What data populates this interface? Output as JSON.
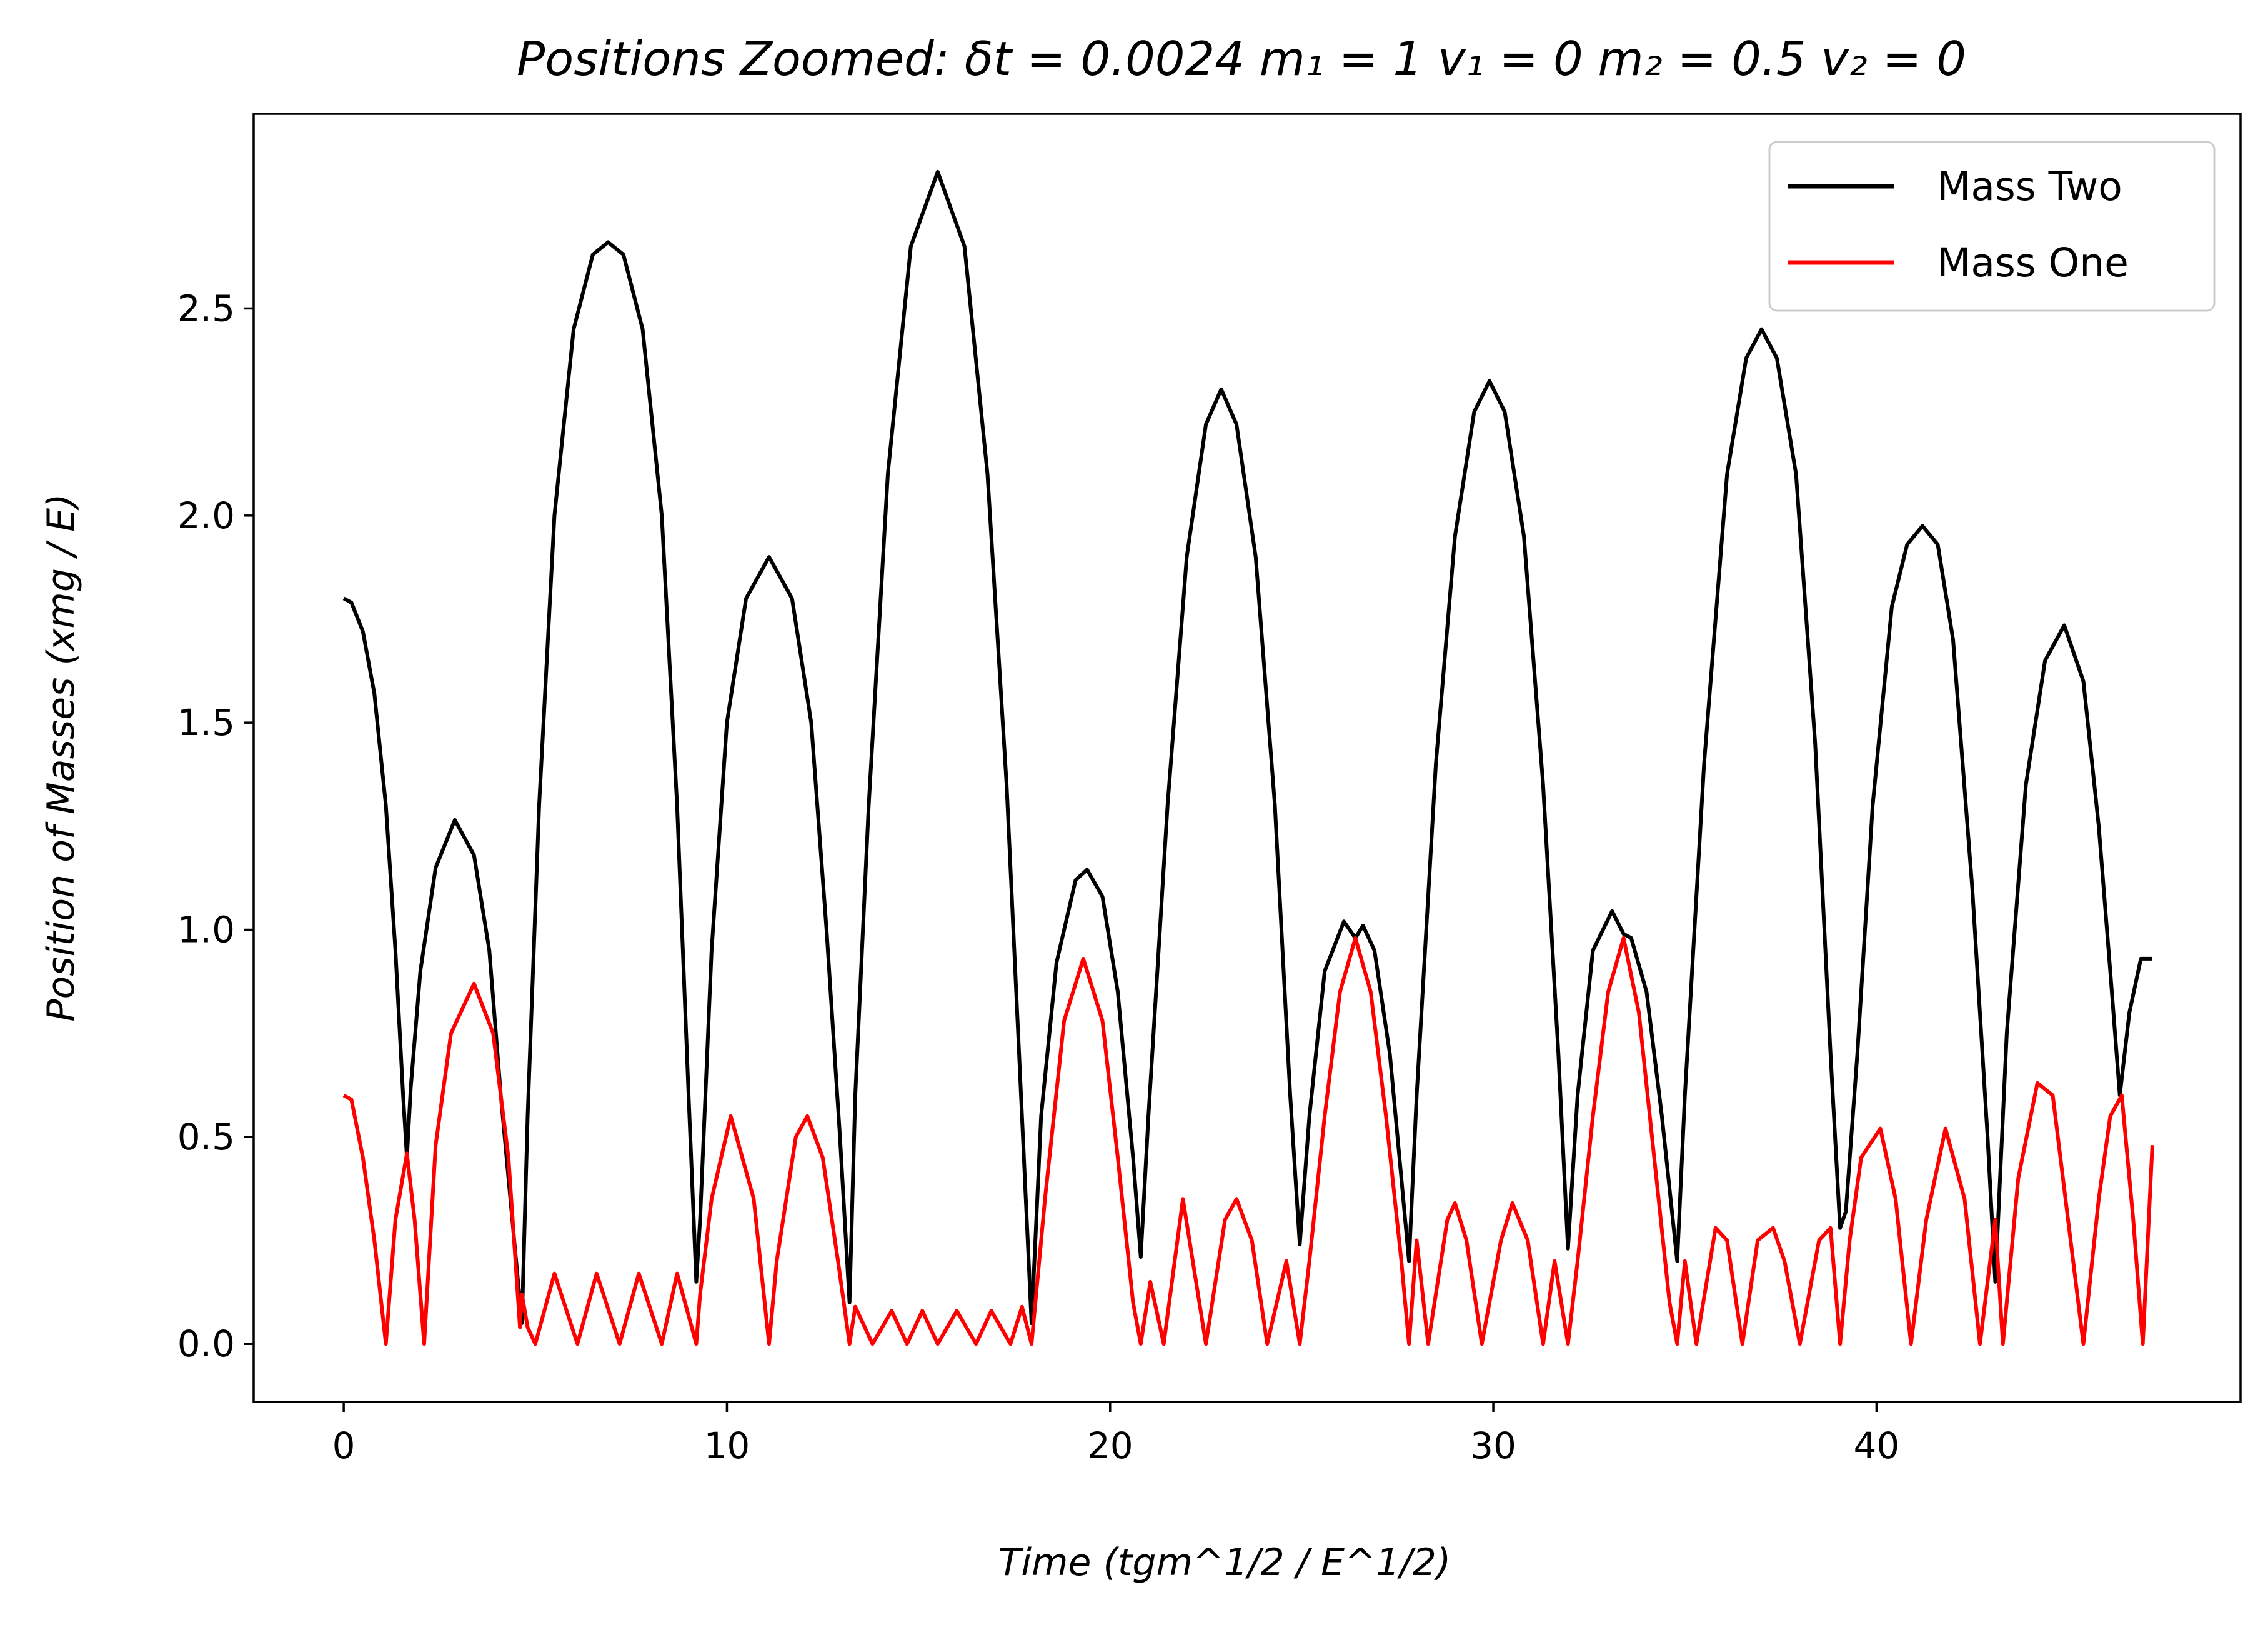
{
  "chart_data": {
    "type": "line",
    "title": "Positions Zoomed: δt = 0.0024 m₁ = 1 v₁ = 0 m₂ = 0.5 v₂ = 0",
    "xlabel": "Time (tgm^1/2 / E^1/2)",
    "ylabel": "Position of Masses (xmg / E)",
    "xlim": [
      -2.35,
      49.5
    ],
    "ylim": [
      -0.14,
      2.97
    ],
    "xticks": [
      0,
      10,
      20,
      30,
      40
    ],
    "yticks": [
      0.0,
      0.5,
      1.0,
      1.5,
      2.0,
      2.5
    ],
    "xtick_labels": [
      "0",
      "10",
      "20",
      "30",
      "40"
    ],
    "ytick_labels": [
      "0.0",
      "0.5",
      "1.0",
      "1.5",
      "2.0",
      "2.5"
    ],
    "grid": false,
    "legend_position": "top-right",
    "series": [
      {
        "name": "Mass Two",
        "color": "#000000",
        "points": [
          [
            0,
            1.8
          ],
          [
            0.2,
            1.79
          ],
          [
            0.5,
            1.72
          ],
          [
            0.8,
            1.57
          ],
          [
            1.1,
            1.3
          ],
          [
            1.35,
            0.95
          ],
          [
            1.55,
            0.6
          ],
          [
            1.65,
            0.45
          ],
          [
            1.75,
            0.62
          ],
          [
            2.0,
            0.9
          ],
          [
            2.4,
            1.15
          ],
          [
            2.9,
            1.265
          ],
          [
            3.4,
            1.18
          ],
          [
            3.8,
            0.95
          ],
          [
            4.1,
            0.6
          ],
          [
            4.5,
            0.2
          ],
          [
            4.65,
            0.05
          ],
          [
            4.8,
            0.55
          ],
          [
            5.1,
            1.3
          ],
          [
            5.5,
            2.0
          ],
          [
            6.0,
            2.45
          ],
          [
            6.5,
            2.63
          ],
          [
            6.9,
            2.66
          ],
          [
            7.3,
            2.63
          ],
          [
            7.8,
            2.45
          ],
          [
            8.3,
            2.0
          ],
          [
            8.7,
            1.3
          ],
          [
            9.0,
            0.6
          ],
          [
            9.2,
            0.15
          ],
          [
            9.3,
            0.3
          ],
          [
            9.6,
            0.95
          ],
          [
            10.0,
            1.5
          ],
          [
            10.5,
            1.8
          ],
          [
            11.1,
            1.9
          ],
          [
            11.7,
            1.8
          ],
          [
            12.2,
            1.5
          ],
          [
            12.6,
            1.0
          ],
          [
            12.95,
            0.5
          ],
          [
            13.2,
            0.1
          ],
          [
            13.35,
            0.6
          ],
          [
            13.7,
            1.3
          ],
          [
            14.2,
            2.1
          ],
          [
            14.8,
            2.65
          ],
          [
            15.5,
            2.83
          ],
          [
            16.2,
            2.65
          ],
          [
            16.8,
            2.1
          ],
          [
            17.3,
            1.35
          ],
          [
            17.7,
            0.55
          ],
          [
            17.95,
            0.05
          ],
          [
            18.2,
            0.55
          ],
          [
            18.6,
            0.92
          ],
          [
            19.1,
            1.12
          ],
          [
            19.4,
            1.145
          ],
          [
            19.8,
            1.08
          ],
          [
            20.2,
            0.85
          ],
          [
            20.6,
            0.45
          ],
          [
            20.8,
            0.21
          ],
          [
            21.0,
            0.55
          ],
          [
            21.5,
            1.3
          ],
          [
            22.0,
            1.9
          ],
          [
            22.5,
            2.22
          ],
          [
            22.9,
            2.305
          ],
          [
            23.3,
            2.22
          ],
          [
            23.8,
            1.9
          ],
          [
            24.3,
            1.3
          ],
          [
            24.7,
            0.6
          ],
          [
            24.95,
            0.24
          ],
          [
            25.2,
            0.55
          ],
          [
            25.6,
            0.9
          ],
          [
            26.1,
            1.02
          ],
          [
            26.4,
            0.98
          ],
          [
            26.6,
            1.01
          ],
          [
            26.9,
            0.95
          ],
          [
            27.3,
            0.7
          ],
          [
            27.6,
            0.4
          ],
          [
            27.8,
            0.2
          ],
          [
            28.0,
            0.6
          ],
          [
            28.5,
            1.4
          ],
          [
            29.0,
            1.95
          ],
          [
            29.5,
            2.25
          ],
          [
            29.9,
            2.325
          ],
          [
            30.3,
            2.25
          ],
          [
            30.8,
            1.95
          ],
          [
            31.3,
            1.35
          ],
          [
            31.7,
            0.7
          ],
          [
            31.95,
            0.23
          ],
          [
            32.2,
            0.6
          ],
          [
            32.6,
            0.95
          ],
          [
            33.1,
            1.045
          ],
          [
            33.4,
            0.99
          ],
          [
            33.6,
            0.98
          ],
          [
            34.0,
            0.85
          ],
          [
            34.4,
            0.55
          ],
          [
            34.8,
            0.2
          ],
          [
            35.0,
            0.6
          ],
          [
            35.5,
            1.4
          ],
          [
            36.1,
            2.1
          ],
          [
            36.6,
            2.38
          ],
          [
            37.0,
            2.45
          ],
          [
            37.4,
            2.38
          ],
          [
            37.9,
            2.1
          ],
          [
            38.4,
            1.45
          ],
          [
            38.8,
            0.7
          ],
          [
            39.05,
            0.28
          ],
          [
            39.2,
            0.32
          ],
          [
            39.5,
            0.7
          ],
          [
            39.9,
            1.3
          ],
          [
            40.4,
            1.78
          ],
          [
            40.8,
            1.93
          ],
          [
            41.2,
            1.975
          ],
          [
            41.6,
            1.93
          ],
          [
            42.0,
            1.7
          ],
          [
            42.5,
            1.1
          ],
          [
            42.9,
            0.5
          ],
          [
            43.1,
            0.15
          ],
          [
            43.4,
            0.75
          ],
          [
            43.9,
            1.35
          ],
          [
            44.4,
            1.65
          ],
          [
            44.9,
            1.735
          ],
          [
            45.4,
            1.6
          ],
          [
            45.8,
            1.25
          ],
          [
            46.1,
            0.9
          ],
          [
            46.35,
            0.6
          ],
          [
            46.6,
            0.8
          ],
          [
            46.9,
            0.93
          ],
          [
            47.2,
            0.93
          ]
        ]
      },
      {
        "name": "Mass One",
        "color": "#ff0000",
        "points": [
          [
            0,
            0.6
          ],
          [
            0.2,
            0.59
          ],
          [
            0.5,
            0.45
          ],
          [
            0.8,
            0.25
          ],
          [
            1.1,
            0.0
          ],
          [
            1.35,
            0.3
          ],
          [
            1.65,
            0.46
          ],
          [
            1.85,
            0.3
          ],
          [
            2.1,
            0.0
          ],
          [
            2.4,
            0.48
          ],
          [
            2.8,
            0.75
          ],
          [
            3.4,
            0.87
          ],
          [
            3.9,
            0.75
          ],
          [
            4.3,
            0.45
          ],
          [
            4.6,
            0.04
          ],
          [
            4.65,
            0.12
          ],
          [
            4.8,
            0.04
          ],
          [
            5.0,
            0.0
          ],
          [
            5.5,
            0.17
          ],
          [
            6.1,
            0.0
          ],
          [
            6.6,
            0.17
          ],
          [
            7.2,
            0.0
          ],
          [
            7.7,
            0.17
          ],
          [
            8.3,
            0.0
          ],
          [
            8.7,
            0.17
          ],
          [
            9.2,
            0.0
          ],
          [
            9.3,
            0.12
          ],
          [
            9.6,
            0.35
          ],
          [
            10.1,
            0.55
          ],
          [
            10.7,
            0.35
          ],
          [
            11.1,
            0.0
          ],
          [
            11.3,
            0.2
          ],
          [
            11.8,
            0.5
          ],
          [
            12.1,
            0.55
          ],
          [
            12.5,
            0.45
          ],
          [
            12.9,
            0.2
          ],
          [
            13.2,
            0.0
          ],
          [
            13.35,
            0.09
          ],
          [
            13.8,
            0.0
          ],
          [
            14.3,
            0.08
          ],
          [
            14.7,
            0.0
          ],
          [
            15.1,
            0.08
          ],
          [
            15.5,
            0.0
          ],
          [
            16.0,
            0.08
          ],
          [
            16.5,
            0.0
          ],
          [
            16.9,
            0.08
          ],
          [
            17.4,
            0.0
          ],
          [
            17.7,
            0.09
          ],
          [
            17.95,
            0.0
          ],
          [
            18.3,
            0.35
          ],
          [
            18.8,
            0.78
          ],
          [
            19.3,
            0.93
          ],
          [
            19.8,
            0.78
          ],
          [
            20.2,
            0.45
          ],
          [
            20.6,
            0.1
          ],
          [
            20.8,
            0.0
          ],
          [
            21.05,
            0.15
          ],
          [
            21.4,
            0.0
          ],
          [
            21.9,
            0.35
          ],
          [
            22.5,
            0.0
          ],
          [
            23.0,
            0.3
          ],
          [
            23.3,
            0.35
          ],
          [
            23.7,
            0.25
          ],
          [
            24.1,
            0.0
          ],
          [
            24.6,
            0.2
          ],
          [
            24.95,
            0.0
          ],
          [
            25.2,
            0.2
          ],
          [
            25.6,
            0.55
          ],
          [
            26.0,
            0.85
          ],
          [
            26.4,
            0.98
          ],
          [
            26.8,
            0.85
          ],
          [
            27.2,
            0.55
          ],
          [
            27.6,
            0.2
          ],
          [
            27.8,
            0.0
          ],
          [
            28.0,
            0.25
          ],
          [
            28.3,
            0.0
          ],
          [
            28.8,
            0.3
          ],
          [
            29.0,
            0.34
          ],
          [
            29.3,
            0.25
          ],
          [
            29.7,
            0.0
          ],
          [
            30.2,
            0.25
          ],
          [
            30.5,
            0.34
          ],
          [
            30.9,
            0.25
          ],
          [
            31.3,
            0.0
          ],
          [
            31.6,
            0.2
          ],
          [
            31.95,
            0.0
          ],
          [
            32.2,
            0.2
          ],
          [
            32.6,
            0.55
          ],
          [
            33.0,
            0.85
          ],
          [
            33.4,
            0.98
          ],
          [
            33.8,
            0.8
          ],
          [
            34.2,
            0.45
          ],
          [
            34.6,
            0.1
          ],
          [
            34.8,
            0.0
          ],
          [
            35.0,
            0.2
          ],
          [
            35.3,
            0.0
          ],
          [
            35.8,
            0.28
          ],
          [
            36.1,
            0.25
          ],
          [
            36.5,
            0.0
          ],
          [
            36.9,
            0.25
          ],
          [
            37.3,
            0.28
          ],
          [
            37.6,
            0.2
          ],
          [
            38.0,
            0.0
          ],
          [
            38.5,
            0.25
          ],
          [
            38.8,
            0.28
          ],
          [
            39.05,
            0.0
          ],
          [
            39.3,
            0.25
          ],
          [
            39.6,
            0.45
          ],
          [
            40.1,
            0.52
          ],
          [
            40.5,
            0.35
          ],
          [
            40.9,
            0.0
          ],
          [
            41.3,
            0.3
          ],
          [
            41.8,
            0.52
          ],
          [
            42.3,
            0.35
          ],
          [
            42.7,
            0.0
          ],
          [
            43.1,
            0.3
          ],
          [
            43.3,
            0.0
          ],
          [
            43.7,
            0.4
          ],
          [
            44.2,
            0.63
          ],
          [
            44.6,
            0.6
          ],
          [
            45.0,
            0.3
          ],
          [
            45.4,
            0.0
          ],
          [
            45.8,
            0.35
          ],
          [
            46.1,
            0.55
          ],
          [
            46.4,
            0.6
          ],
          [
            46.7,
            0.3
          ],
          [
            46.95,
            0.0
          ],
          [
            47.2,
            0.48
          ]
        ]
      }
    ]
  }
}
